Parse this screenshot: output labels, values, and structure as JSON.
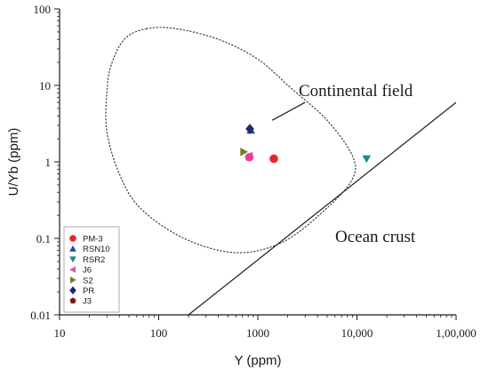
{
  "chart_data": {
    "type": "scatter",
    "xlabel": "Y (ppm)",
    "ylabel": "U/Yb (ppm)",
    "x_scale": "log",
    "y_scale": "log",
    "xlim": [
      10,
      100000
    ],
    "ylim": [
      0.01,
      100
    ],
    "x_ticks": [
      {
        "value": 10,
        "label": "10"
      },
      {
        "value": 100,
        "label": "100"
      },
      {
        "value": 1000,
        "label": "1000"
      },
      {
        "value": 10000,
        "label": "10,000"
      },
      {
        "value": 100000,
        "label": "1,00,000"
      }
    ],
    "y_ticks": [
      {
        "value": 0.01,
        "label": "0.01"
      },
      {
        "value": 0.1,
        "label": "0.1"
      },
      {
        "value": 1,
        "label": "1"
      },
      {
        "value": 10,
        "label": "10"
      },
      {
        "value": 100,
        "label": "100"
      }
    ],
    "grid": false,
    "legend_position": "bottom-left",
    "series": [
      {
        "name": "PM-3",
        "marker": "circle",
        "color": "#e8262a",
        "points": [
          {
            "x": 1450,
            "y": 1.1
          }
        ]
      },
      {
        "name": "RSN10",
        "marker": "triangle-up",
        "color": "#24449c",
        "points": [
          {
            "x": 850,
            "y": 2.6
          }
        ]
      },
      {
        "name": "RSR2",
        "marker": "triangle-down",
        "color": "#1b8a8a",
        "points": [
          {
            "x": 12500,
            "y": 1.1
          }
        ]
      },
      {
        "name": "J6",
        "marker": "triangle-left",
        "color": "#d85aa8",
        "points": [
          {
            "x": 820,
            "y": 1.2
          }
        ]
      },
      {
        "name": "S2",
        "marker": "triangle-right",
        "color": "#7a7a2a",
        "points": [
          {
            "x": 720,
            "y": 1.35
          }
        ]
      },
      {
        "name": "PR",
        "marker": "diamond",
        "color": "#1c2a6e",
        "points": [
          {
            "x": 830,
            "y": 2.7
          }
        ]
      },
      {
        "name": "J3",
        "marker": "pentagon",
        "color": "#7a1a1a",
        "points": []
      },
      {
        "name": "",
        "marker": "circle",
        "color": "#ec3f92",
        "points": [
          {
            "x": 820,
            "y": 1.15
          }
        ]
      }
    ],
    "annotations": [
      {
        "text": "Continental field"
      },
      {
        "text": "Ocean crust"
      }
    ],
    "continental_field_boundary": [
      [
        75,
        55
      ],
      [
        45,
        40
      ],
      [
        33,
        18
      ],
      [
        30,
        8
      ],
      [
        30,
        2.5
      ],
      [
        40,
        0.7
      ],
      [
        65,
        0.25
      ],
      [
        180,
        0.1
      ],
      [
        600,
        0.065
      ],
      [
        1800,
        0.09
      ],
      [
        5000,
        0.25
      ],
      [
        9000,
        0.6
      ],
      [
        9000,
        1.2
      ],
      [
        5000,
        3.5
      ],
      [
        2200,
        9
      ],
      [
        1000,
        22
      ],
      [
        400,
        40
      ],
      [
        150,
        55
      ],
      [
        75,
        55
      ]
    ],
    "ocean_crust_line": [
      [
        200,
        0.01
      ],
      [
        100000,
        6
      ]
    ],
    "continental_label_leader": [
      [
        1400,
        3.5
      ],
      [
        3000,
        6.0
      ]
    ]
  }
}
